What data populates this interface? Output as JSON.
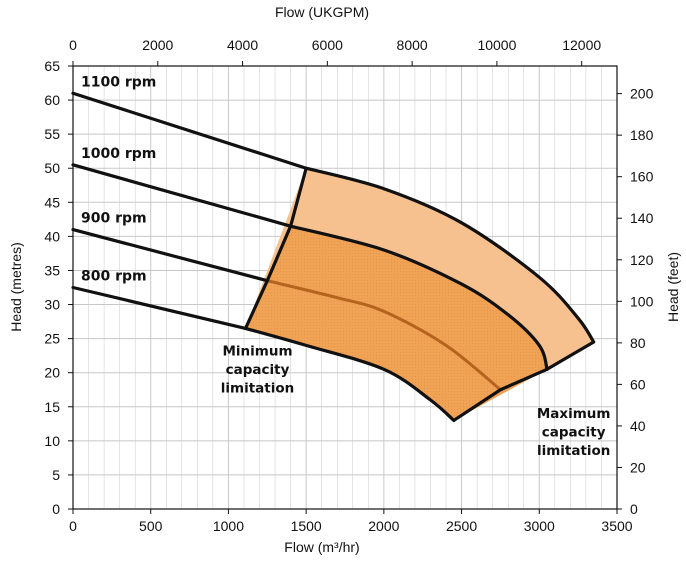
{
  "chart_data": {
    "type": "line",
    "title": "",
    "xlabel": "Flow (m³/hr)",
    "ylabel": "Head (metres)",
    "x2label": "Flow (UKGPM)",
    "y2label": "Head (feet)",
    "xlim": [
      0,
      3500
    ],
    "ylim": [
      0,
      65
    ],
    "x2lim": [
      0,
      12833
    ],
    "y2lim": [
      0,
      213.3
    ],
    "xticks": [
      0,
      500,
      1000,
      1500,
      2000,
      2500,
      3000,
      3500
    ],
    "xtick_labels": [
      "0",
      "500",
      "1000",
      "1500",
      "2000",
      "2500",
      "3000",
      "3500"
    ],
    "yticks": [
      0,
      5,
      10,
      15,
      20,
      25,
      30,
      35,
      40,
      45,
      50,
      55,
      60,
      65
    ],
    "ytick_labels": [
      "0",
      "5",
      "10",
      "15",
      "20",
      "25",
      "30",
      "35",
      "40",
      "45",
      "50",
      "55",
      "60",
      "65"
    ],
    "x2ticks": [
      0,
      2000,
      4000,
      6000,
      8000,
      10000,
      12000
    ],
    "x2tick_labels": [
      "0",
      "2000",
      "4000",
      "6000",
      "8000",
      "10000",
      "12000"
    ],
    "y2ticks": [
      0,
      20,
      40,
      60,
      80,
      100,
      120,
      140,
      160,
      180,
      200
    ],
    "y2tick_labels": [
      "0",
      "20",
      "40",
      "60",
      "80",
      "100",
      "120",
      "140",
      "160",
      "180",
      "200"
    ],
    "grid": true,
    "series": [
      {
        "name": "1100 rpm",
        "x": [
          0,
          1500,
          2000,
          2500,
          3000,
          3250,
          3350
        ],
        "y": [
          61,
          50,
          47,
          42,
          34,
          28,
          24.5
        ]
      },
      {
        "name": "1000 rpm",
        "x": [
          0,
          1400,
          2000,
          2500,
          2800,
          3000,
          3050
        ],
        "y": [
          50.5,
          41.5,
          38,
          33,
          28.5,
          24,
          20.5
        ]
      },
      {
        "name": "900 rpm",
        "x": [
          0,
          1250,
          1700,
          2000,
          2400,
          2750
        ],
        "y": [
          41,
          33.5,
          31,
          29,
          24,
          17.5
        ]
      },
      {
        "name": "800 rpm",
        "x": [
          0,
          1110,
          1500,
          2000,
          2300,
          2450
        ],
        "y": [
          32.5,
          26.5,
          24,
          20.5,
          16,
          13
        ]
      }
    ],
    "boundaries": [
      {
        "kind": "minimum capacity",
        "x": [
          1110,
          1250,
          1400,
          1500
        ],
        "y": [
          26.5,
          33.5,
          41.5,
          50
        ]
      },
      {
        "kind": "maximum capacity",
        "x": [
          2450,
          2750,
          3050,
          3350
        ],
        "y": [
          13,
          17.5,
          20.5,
          24.5
        ]
      }
    ],
    "labels": [
      "1100 rpm",
      "1000 rpm",
      "900 rpm",
      "800 rpm"
    ],
    "annotations": [
      {
        "text": [
          "Minimum",
          "capacity",
          "limitation"
        ]
      },
      {
        "text": [
          "Maximum",
          "capacity",
          "limitation"
        ]
      }
    ],
    "colors": {
      "light_fill": "#f6c08f",
      "dark_fill": "#f0a255",
      "curve": "#111111",
      "inner_curve": "#b5631f",
      "grid": "#c8c8c8"
    }
  }
}
